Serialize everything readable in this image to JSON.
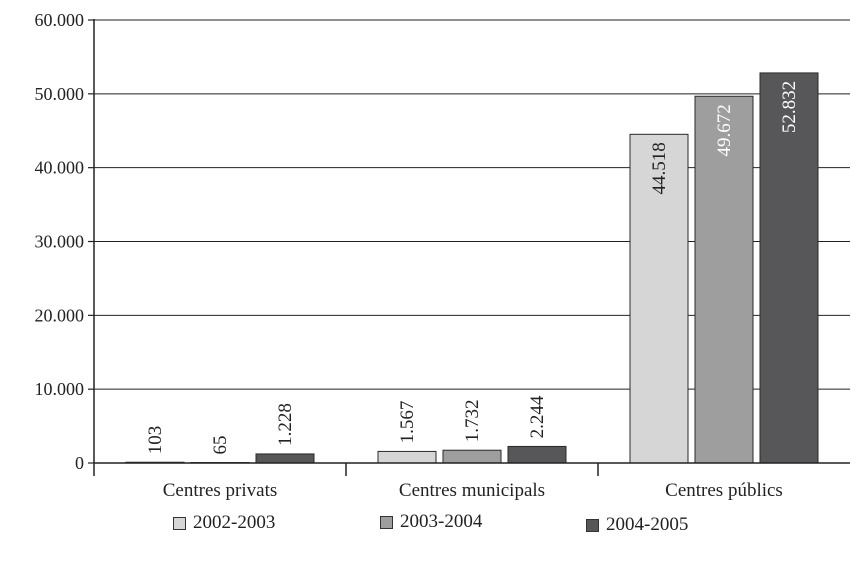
{
  "chart_data": {
    "type": "bar",
    "categories": [
      "Centres privats",
      "Centres municipals",
      "Centres públics"
    ],
    "series": [
      {
        "name": "2002-2003",
        "values": [
          103,
          1567,
          44518
        ],
        "labels": [
          "103",
          "1.567",
          "44.518"
        ],
        "color": "#d6d6d6"
      },
      {
        "name": "2003-2004",
        "values": [
          65,
          1732,
          49672
        ],
        "labels": [
          "65",
          "1.732",
          "49.672"
        ],
        "color": "#9e9e9e"
      },
      {
        "name": "2004-2005",
        "values": [
          1228,
          2244,
          52832
        ],
        "labels": [
          "1.228",
          "2.244",
          "52.832"
        ],
        "color": "#57575a"
      }
    ],
    "yticks": [
      0,
      10000,
      20000,
      30000,
      40000,
      50000,
      60000
    ],
    "ytick_labels": [
      "0",
      "10.000",
      "20.000",
      "30.000",
      "40.000",
      "50.000",
      "60.000"
    ],
    "ylim": [
      0,
      60000
    ],
    "grid": true,
    "legend_position": "bottom"
  }
}
